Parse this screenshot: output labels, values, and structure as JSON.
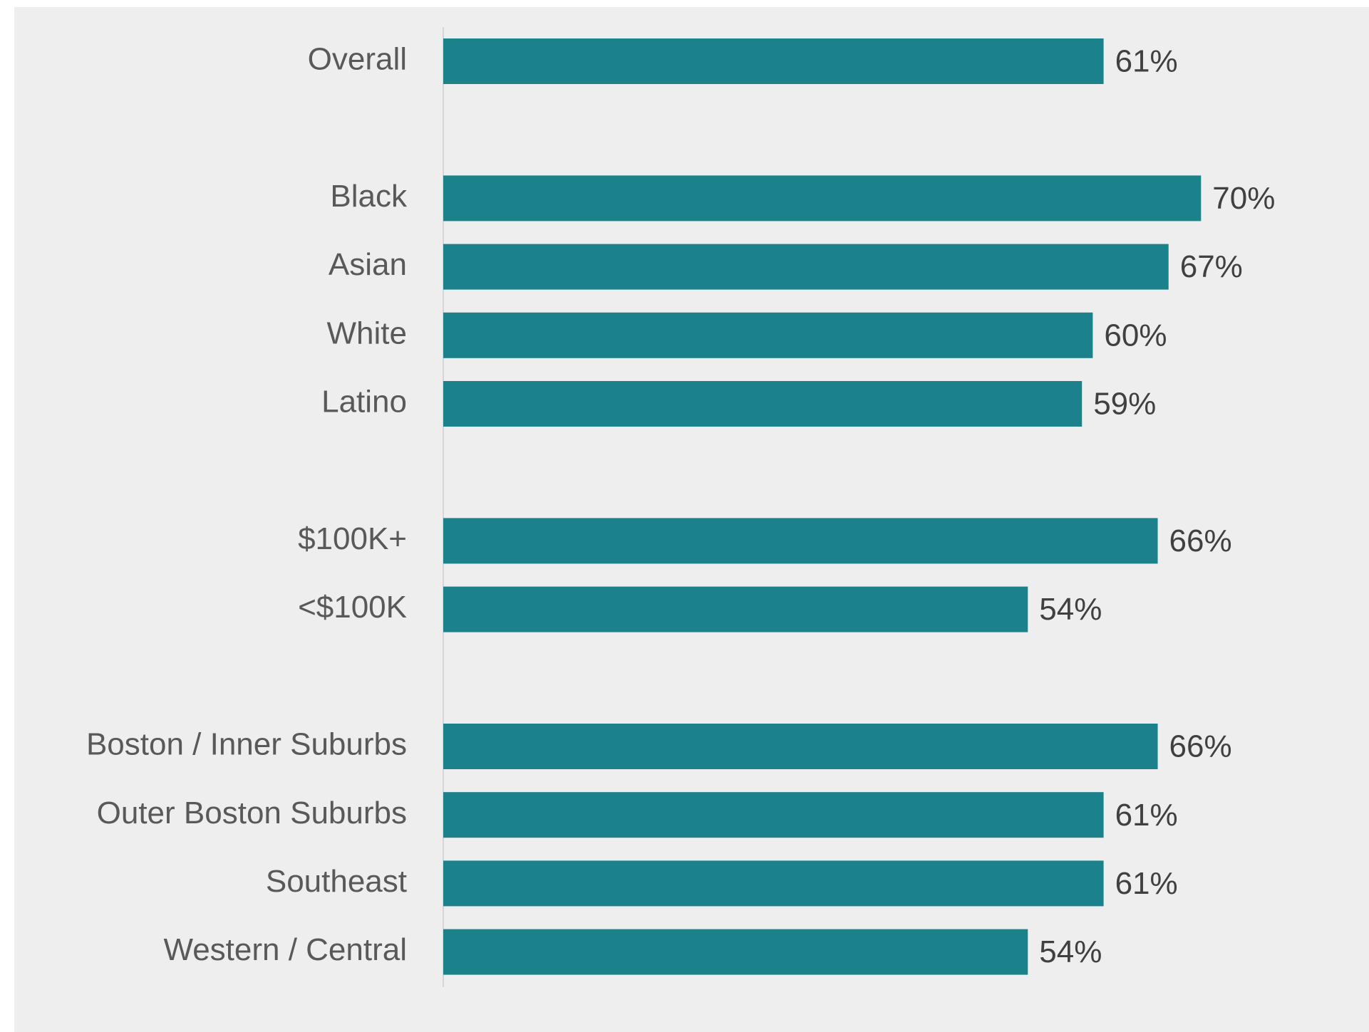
{
  "chart_data": {
    "type": "bar",
    "orientation": "horizontal",
    "categories": [
      "Overall",
      null,
      "Black",
      "Asian",
      "White",
      "Latino",
      null,
      "$100K+",
      "<$100K",
      null,
      "Boston / Inner Suburbs",
      "Outer Boston Suburbs",
      "Southeast",
      "Western / Central"
    ],
    "values": [
      61,
      null,
      70,
      67,
      60,
      59,
      null,
      66,
      54,
      null,
      66,
      61,
      61,
      54
    ],
    "value_labels": [
      "61%",
      null,
      "70%",
      "67%",
      "60%",
      "59%",
      null,
      "66%",
      "54%",
      null,
      "66%",
      "61%",
      "61%",
      "54%"
    ],
    "color": "#1b818b",
    "xlim": [
      0,
      100
    ]
  }
}
